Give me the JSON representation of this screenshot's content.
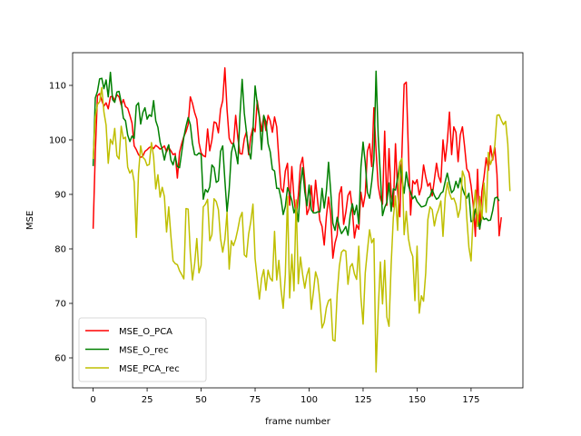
{
  "chart_data": {
    "type": "line",
    "title": "",
    "xlabel": "frame number",
    "ylabel": "MSE",
    "xlim": [
      -9.5,
      199
    ],
    "ylim": [
      54.5,
      116
    ],
    "xticks": [
      0,
      25,
      50,
      75,
      100,
      125,
      150,
      175
    ],
    "yticks": [
      60,
      70,
      80,
      90,
      100,
      110
    ],
    "grid": false,
    "legend_position": "lower-left",
    "x": {
      "start": 0,
      "end": 189,
      "step": 1
    },
    "series": [
      {
        "name": "MSE_O_PCA",
        "color": "#ff0000",
        "values": [
          83.7,
          97.6,
          108.1,
          108.5,
          107.2,
          106.2,
          106.8,
          105.7,
          107.9,
          108.0,
          107.2,
          108.3,
          107.9,
          106.4,
          107.4,
          106.1,
          105.8,
          104.5,
          103.1,
          98.9,
          98.2,
          97.3,
          96.8,
          97.0,
          97.9,
          98.2,
          98.6,
          98.8,
          98.4,
          99.0,
          98.7,
          98.3,
          98.5,
          98.9,
          97.8,
          98.6,
          98.0,
          97.3,
          97.5,
          93.0,
          97.7,
          99.3,
          100.6,
          101.5,
          102.8,
          107.9,
          106.7,
          105.0,
          103.8,
          99.5,
          97.6,
          97.1,
          96.9,
          102.0,
          98.0,
          100.0,
          103.3,
          103.1,
          101.3,
          105.6,
          107.2,
          113.2,
          105.6,
          100.3,
          99.4,
          99.2,
          104.5,
          100.4,
          97.5,
          97.4,
          100.2,
          101.5,
          97.3,
          100.6,
          102.3,
          101.5,
          107.2,
          104.4,
          101.6,
          104.4,
          101.7,
          104.5,
          103.5,
          101.4,
          104.2,
          102.4,
          96.5,
          91.1,
          90.4,
          94.3,
          95.7,
          88.0,
          95.1,
          89.3,
          85.9,
          89.8,
          95.3,
          96.8,
          92.6,
          86.3,
          87.4,
          91.6,
          86.9,
          92.6,
          88.6,
          85.2,
          84.1,
          80.7,
          85.9,
          89.5,
          86.3,
          78.3,
          81.1,
          82.6,
          90.0,
          91.4,
          84.5,
          86.7,
          89.8,
          90.6,
          87.3,
          82.0,
          84.4,
          83.6,
          90.4,
          87.7,
          90.0,
          97.9,
          99.3,
          95.1,
          105.9,
          98.1,
          91.6,
          89.3,
          88.2,
          101.6,
          88.0,
          98.4,
          90.0,
          87.7,
          99.3,
          90.6,
          85.9,
          97.8,
          110.2,
          110.6,
          97.7,
          86.2,
          92.5,
          91.9,
          92.7,
          89.9,
          91.3,
          95.4,
          93.2,
          91.5,
          92.1,
          89.7,
          92.7,
          95.7,
          93.3,
          92.2,
          100.0,
          96.1,
          99.7,
          105.1,
          97.3,
          102.4,
          101.4,
          96.0,
          100.9,
          102.4,
          98.8,
          94.7,
          94.0,
          91.6,
          88.1,
          82.3,
          94.6,
          83.6,
          90.5,
          93.2,
          96.7,
          94.4,
          98.9,
          96.3,
          98.6,
          93.7,
          82.4,
          85.8
        ]
      },
      {
        "name": "MSE_O_rec",
        "color": "#008000",
        "values": [
          95.2,
          107.7,
          108.9,
          111.2,
          111.3,
          109.4,
          111.0,
          107.9,
          112.4,
          107.4,
          106.9,
          108.8,
          108.9,
          106.9,
          104.0,
          103.5,
          100.9,
          99.7,
          100.7,
          100.3,
          106.3,
          106.8,
          102.9,
          105.0,
          105.9,
          103.8,
          104.6,
          104.3,
          107.2,
          103.5,
          102.3,
          99.6,
          98.2,
          96.3,
          98.1,
          99.1,
          96.3,
          95.4,
          97.0,
          95.1,
          94.9,
          97.7,
          100.5,
          102.5,
          104.1,
          102.8,
          99.3,
          97.3,
          97.2,
          97.6,
          97.3,
          89.1,
          90.9,
          90.4,
          91.4,
          95.4,
          94.9,
          92.2,
          92.5,
          97.9,
          98.9,
          92.6,
          86.8,
          91.0,
          97.6,
          99.4,
          97.8,
          95.6,
          104.6,
          111.1,
          104.9,
          101.4,
          98.0,
          96.5,
          101.6,
          109.9,
          106.6,
          104.1,
          98.2,
          104.5,
          103.3,
          99.3,
          97.8,
          94.6,
          94.3,
          91.1,
          91.1,
          89.2,
          86.3,
          87.8,
          91.2,
          90.2,
          88.9,
          86.6,
          87.8,
          85.0,
          91.8,
          94.9,
          90.5,
          87.9,
          91.7,
          87.2,
          86.6,
          86.6,
          86.8,
          86.8,
          91.1,
          87.5,
          90.6,
          95.9,
          90.6,
          84.7,
          83.4,
          85.8,
          84.0,
          82.8,
          83.4,
          84.1,
          82.5,
          86.1,
          88.3,
          86.3,
          88.0,
          84.6,
          95.0,
          99.6,
          95.8,
          90.4,
          89.3,
          92.3,
          96.4,
          112.6,
          100.7,
          93.5,
          86.1,
          87.6,
          88.5,
          92.1,
          86.9,
          91.0,
          90.8,
          93.0,
          95.7,
          92.9,
          90.2,
          94.1,
          91.6,
          90.4,
          89.2,
          89.7,
          88.7,
          88.2,
          87.7,
          87.8,
          88.0,
          89.3,
          89.6,
          90.9,
          89.8,
          89.1,
          89.4,
          90.2,
          90.5,
          92.3,
          93.9,
          92.0,
          90.3,
          90.8,
          92.4,
          91.2,
          93.0,
          91.1,
          90.0,
          89.3,
          90.2,
          85.0,
          85.2,
          87.3,
          85.9,
          83.7,
          86.1,
          85.4,
          85.6,
          85.2,
          85.3,
          87.0,
          89.3,
          89.5,
          88.8
        ]
      },
      {
        "name": "MSE_PCA_rec",
        "color": "#bfbf00",
        "values": [
          96.5,
          104.2,
          106.5,
          107.0,
          109.6,
          105.1,
          102.7,
          95.7,
          100.1,
          99.2,
          102.1,
          97.1,
          96.5,
          102.5,
          100.2,
          100.5,
          95.0,
          93.9,
          94.5,
          92.3,
          82.1,
          93.8,
          98.9,
          96.8,
          96.4,
          95.3,
          95.5,
          99.5,
          96.9,
          91.0,
          93.6,
          89.5,
          91.3,
          89.6,
          83.1,
          87.7,
          82.4,
          77.8,
          77.3,
          77.1,
          76.0,
          75.3,
          74.5,
          87.4,
          87.3,
          79.2,
          74.3,
          77.3,
          81.9,
          75.6,
          77.0,
          87.7,
          88.2,
          89.1,
          81.5,
          82.6,
          89.2,
          88.7,
          87.2,
          81.9,
          79.4,
          81.7,
          86.7,
          76.3,
          81.5,
          80.6,
          81.8,
          83.6,
          85.7,
          86.7,
          78.9,
          78.5,
          82.7,
          85.0,
          88.2,
          78.2,
          74.4,
          70.8,
          74.6,
          76.2,
          72.4,
          76.1,
          74.6,
          74.1,
          83.2,
          74.3,
          77.9,
          72.6,
          69.1,
          75.3,
          89.6,
          71.0,
          79.0,
          72.3,
          89.0,
          73.6,
          78.5,
          75.3,
          72.8,
          75.2,
          76.5,
          68.9,
          72.1,
          75.8,
          74.4,
          70.6,
          65.5,
          66.5,
          69.2,
          70.5,
          70.8,
          63.3,
          63.1,
          71.7,
          76.8,
          79.4,
          79.8,
          79.6,
          73.5,
          76.7,
          77.3,
          75.4,
          74.4,
          80.5,
          71.1,
          66.2,
          75.6,
          79.7,
          83.5,
          81.1,
          81.9,
          57.4,
          68.6,
          77.6,
          69.9,
          77.9,
          67.5,
          65.8,
          77.2,
          85.7,
          89.7,
          83.4,
          95.9,
          96.6,
          82.6,
          86.9,
          81.9,
          79.7,
          78.6,
          70.5,
          80.5,
          68.2,
          71.4,
          70.4,
          75.6,
          85.4,
          87.7,
          87.2,
          84.2,
          86.2,
          87.3,
          88.8,
          82.3,
          89.3,
          92.2,
          90.2,
          89.1,
          89.3,
          88.2,
          85.8,
          87.4,
          94.3,
          93.1,
          85.8,
          80.3,
          77.8,
          86.6,
          90.8,
          84.1,
          89.6,
          85.4,
          92.1,
          86.7,
          97.7,
          95.5,
          96.7,
          99.0,
          104.5,
          104.6,
          103.6,
          102.8,
          103.4,
          99.3,
          90.6
        ]
      }
    ]
  }
}
